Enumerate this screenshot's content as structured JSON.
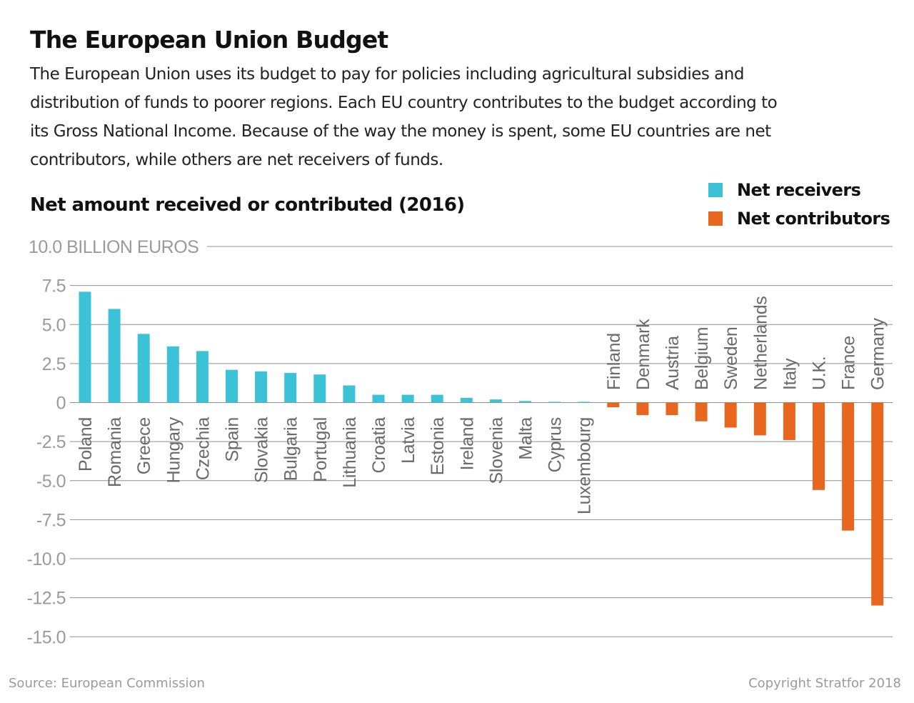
{
  "header": {
    "title": "The European Union Budget",
    "intro_lines": [
      "The European Union uses its budget to pay for policies including agricultural subsidies and",
      "distribution of funds to poorer regions. Each EU country contributes to the budget according to",
      "its Gross National Income. Because of the way the money is spent, some EU countries are net",
      "contributors, while others are net receivers of funds."
    ]
  },
  "chart_data": {
    "type": "bar",
    "title": "Net amount received or contributed (2016)",
    "ylabel": "10.0 BILLION EUROS",
    "ylim": [
      -15,
      10
    ],
    "yticks": [
      10,
      7.5,
      5,
      2.5,
      0,
      -2.5,
      -5,
      -7.5,
      -10,
      -12.5,
      -15
    ],
    "ytick_labels": [
      "10.0 BILLION EUROS",
      "7.5",
      "5.0",
      "2.5",
      "0",
      "-2.5",
      "-5.0",
      "-7.5",
      "-10.0",
      "-12.5",
      "-15.0"
    ],
    "grid": true,
    "legend_position": "top-right",
    "categories": [
      "Poland",
      "Romania",
      "Greece",
      "Hungary",
      "Czechia",
      "Spain",
      "Slovakia",
      "Bulgaria",
      "Portugal",
      "Lithuania",
      "Croatia",
      "Latvia",
      "Estonia",
      "Ireland",
      "Slovenia",
      "Malta",
      "Cyprus",
      "Luxembourg",
      "Finland",
      "Denmark",
      "Austria",
      "Belgium",
      "Sweden",
      "Netherlands",
      "Italy",
      "U.K.",
      "France",
      "Germany"
    ],
    "values": [
      7.1,
      6.0,
      4.4,
      3.6,
      3.3,
      2.1,
      2.0,
      1.9,
      1.8,
      1.1,
      0.5,
      0.5,
      0.5,
      0.3,
      0.2,
      0.1,
      0.05,
      0.05,
      -0.3,
      -0.8,
      -0.8,
      -1.2,
      -1.6,
      -2.1,
      -2.4,
      -5.6,
      -8.2,
      -13.0
    ],
    "series": [
      {
        "name": "Net receivers",
        "color": "#3cc2d6"
      },
      {
        "name": "Net contributors",
        "color": "#e8661e"
      }
    ]
  },
  "legend": {
    "receivers_label": "Net receivers",
    "contributors_label": "Net contributors"
  },
  "colors": {
    "receivers": "#3cc2d6",
    "contributors": "#e8661e",
    "grid": "#8f8f8f",
    "axis_text": "#9a9a9a",
    "category_text": "#6a6a6a"
  },
  "footer": {
    "source": "Source: European Commission",
    "copyright": "Copyright Stratfor 2018"
  }
}
